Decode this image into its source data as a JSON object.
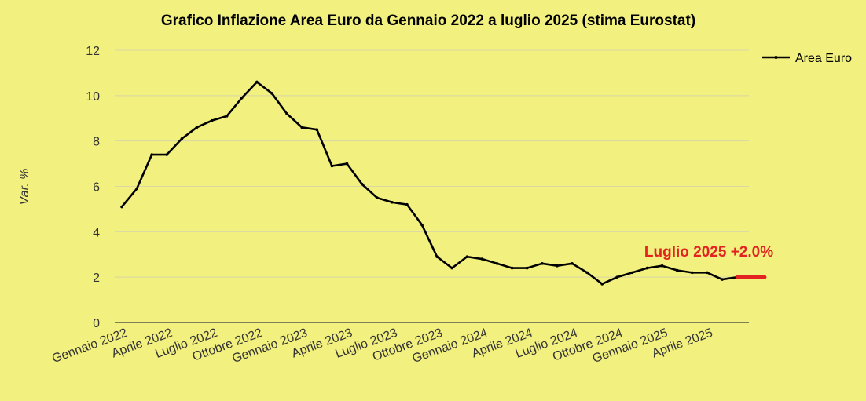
{
  "chart_data": {
    "type": "line",
    "title": "Grafico Inflazione Area Euro da Gennaio 2022 a luglio 2025 (stima Eurostat)",
    "xlabel": "",
    "ylabel": "Var. %",
    "ylim": [
      0,
      12
    ],
    "yticks": [
      "0",
      "2",
      "4",
      "6",
      "8",
      "10",
      "12"
    ],
    "grid": true,
    "legend_position": "top-right",
    "x": [
      "Gen 2022",
      "Feb 2022",
      "Mar 2022",
      "Apr 2022",
      "Mag 2022",
      "Giu 2022",
      "Lug 2022",
      "Ago 2022",
      "Set 2022",
      "Ott 2022",
      "Nov 2022",
      "Dic 2022",
      "Gen 2023",
      "Feb 2023",
      "Mar 2023",
      "Apr 2023",
      "Mag 2023",
      "Giu 2023",
      "Lug 2023",
      "Ago 2023",
      "Set 2023",
      "Ott 2023",
      "Nov 2023",
      "Dic 2023",
      "Gen 2024",
      "Feb 2024",
      "Mar 2024",
      "Apr 2024",
      "Mag 2024",
      "Giu 2024",
      "Lug 2024",
      "Ago 2024",
      "Set 2024",
      "Ott 2024",
      "Nov 2024",
      "Dic 2024",
      "Gen 2025",
      "Feb 2025",
      "Mar 2025",
      "Apr 2025",
      "Mag 2025",
      "Giu 2025",
      "Lug 2025"
    ],
    "xtick_labels": [
      {
        "index": 0,
        "label": "Gennaio 2022"
      },
      {
        "index": 3,
        "label": "Aprile 2022"
      },
      {
        "index": 6,
        "label": "Luglio 2022"
      },
      {
        "index": 9,
        "label": "Ottobre 2022"
      },
      {
        "index": 12,
        "label": "Gennaio 2023"
      },
      {
        "index": 15,
        "label": "Aprile 2023"
      },
      {
        "index": 18,
        "label": "Luglio 2023"
      },
      {
        "index": 21,
        "label": "Ottobre 2023"
      },
      {
        "index": 24,
        "label": "Gennaio 2024"
      },
      {
        "index": 27,
        "label": "Aprile 2024"
      },
      {
        "index": 30,
        "label": "Luglio 2024"
      },
      {
        "index": 33,
        "label": "Ottobre 2024"
      },
      {
        "index": 36,
        "label": "Gennaio 2025"
      },
      {
        "index": 39,
        "label": "Aprile 2025"
      }
    ],
    "series": [
      {
        "name": "Area Euro",
        "color": "#000000",
        "values": [
          5.1,
          5.9,
          7.4,
          7.4,
          8.1,
          8.6,
          8.9,
          9.1,
          9.9,
          10.6,
          10.1,
          9.2,
          8.6,
          8.5,
          6.9,
          7.0,
          6.1,
          5.5,
          5.3,
          5.2,
          4.3,
          2.9,
          2.4,
          2.9,
          2.8,
          2.6,
          2.4,
          2.4,
          2.6,
          2.5,
          2.6,
          2.2,
          1.7,
          2.0,
          2.2,
          2.4,
          2.5,
          2.3,
          2.2,
          2.2,
          1.9,
          2.0,
          2.0
        ]
      }
    ],
    "highlight": {
      "index": 42,
      "color": "#e32222",
      "annotation": "Luglio 2025 +2.0%"
    }
  }
}
